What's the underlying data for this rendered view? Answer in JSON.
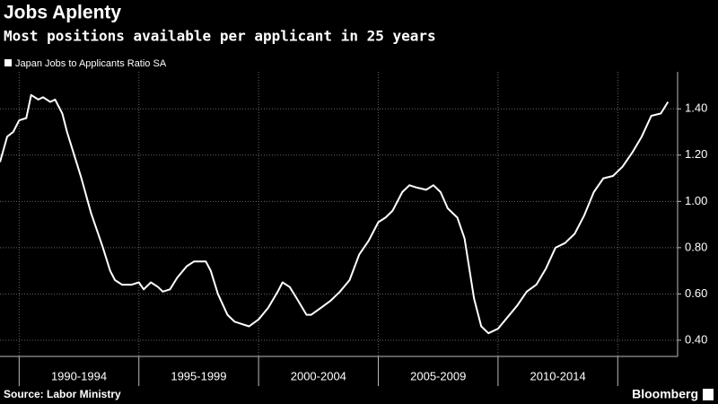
{
  "chart_data": {
    "type": "line",
    "title": "Jobs Aplenty",
    "subtitle": "Most positions available per applicant in 25 years",
    "source": "Source: Labor Ministry",
    "brand": "Bloomberg",
    "x": [
      1989.2,
      1989.5,
      1989.75,
      1990.0,
      1990.3,
      1990.5,
      1990.8,
      1991.0,
      1991.3,
      1991.5,
      1991.8,
      1992.0,
      1992.3,
      1992.6,
      1993.0,
      1993.5,
      1993.8,
      1994.0,
      1994.3,
      1994.7,
      1995.0,
      1995.2,
      1995.5,
      1995.8,
      1996.0,
      1996.3,
      1996.6,
      1997.0,
      1997.3,
      1997.8,
      1998.0,
      1998.3,
      1998.7,
      1999.0,
      1999.3,
      1999.6,
      2000.0,
      2000.4,
      2000.8,
      2001.0,
      2001.3,
      2001.6,
      2002.0,
      2002.2,
      2002.6,
      2003.0,
      2003.4,
      2003.8,
      2004.2,
      2004.6,
      2005.0,
      2005.3,
      2005.6,
      2006.0,
      2006.3,
      2006.6,
      2007.0,
      2007.3,
      2007.6,
      2007.9,
      2008.3,
      2008.6,
      2009.0,
      2009.3,
      2009.6,
      2010.0,
      2010.4,
      2010.8,
      2011.2,
      2011.6,
      2012.0,
      2012.4,
      2012.8,
      2013.2,
      2013.6,
      2014.0,
      2014.4,
      2014.8,
      2015.2,
      2015.6,
      2016.0,
      2016.4,
      2016.8,
      2017.1
    ],
    "series": [
      {
        "name": "Japan Jobs to Applicants Ratio SA",
        "color": "#ffffff",
        "values": [
          1.17,
          1.28,
          1.3,
          1.35,
          1.36,
          1.46,
          1.44,
          1.45,
          1.43,
          1.44,
          1.38,
          1.3,
          1.2,
          1.1,
          0.95,
          0.8,
          0.7,
          0.66,
          0.64,
          0.64,
          0.65,
          0.62,
          0.65,
          0.63,
          0.61,
          0.62,
          0.67,
          0.72,
          0.74,
          0.74,
          0.7,
          0.6,
          0.51,
          0.48,
          0.47,
          0.46,
          0.49,
          0.54,
          0.61,
          0.65,
          0.63,
          0.58,
          0.51,
          0.51,
          0.54,
          0.57,
          0.61,
          0.66,
          0.77,
          0.83,
          0.91,
          0.93,
          0.96,
          1.04,
          1.07,
          1.06,
          1.05,
          1.07,
          1.04,
          0.97,
          0.93,
          0.84,
          0.58,
          0.46,
          0.43,
          0.45,
          0.5,
          0.55,
          0.61,
          0.64,
          0.71,
          0.8,
          0.82,
          0.86,
          0.94,
          1.04,
          1.1,
          1.11,
          1.15,
          1.21,
          1.28,
          1.37,
          1.38,
          1.43
        ]
      }
    ],
    "xlim": [
      1989.2,
      2017.5
    ],
    "xticks": [
      1990,
      1995,
      2000,
      2005,
      2010,
      2015
    ],
    "x_period_labels": [
      "1990-1994",
      "1995-1999",
      "2000-2004",
      "2005-2009",
      "2010-2014"
    ],
    "ylim": [
      0.33,
      1.56
    ],
    "yticks": [
      {
        "value": 0.4,
        "label": "0.40"
      },
      {
        "value": 0.6,
        "label": "0.60"
      },
      {
        "value": 0.8,
        "label": "0.80"
      },
      {
        "value": 1.0,
        "label": "1.00"
      },
      {
        "value": 1.2,
        "label": "1.20"
      },
      {
        "value": 1.4,
        "label": "1.40"
      }
    ],
    "grid": true
  }
}
